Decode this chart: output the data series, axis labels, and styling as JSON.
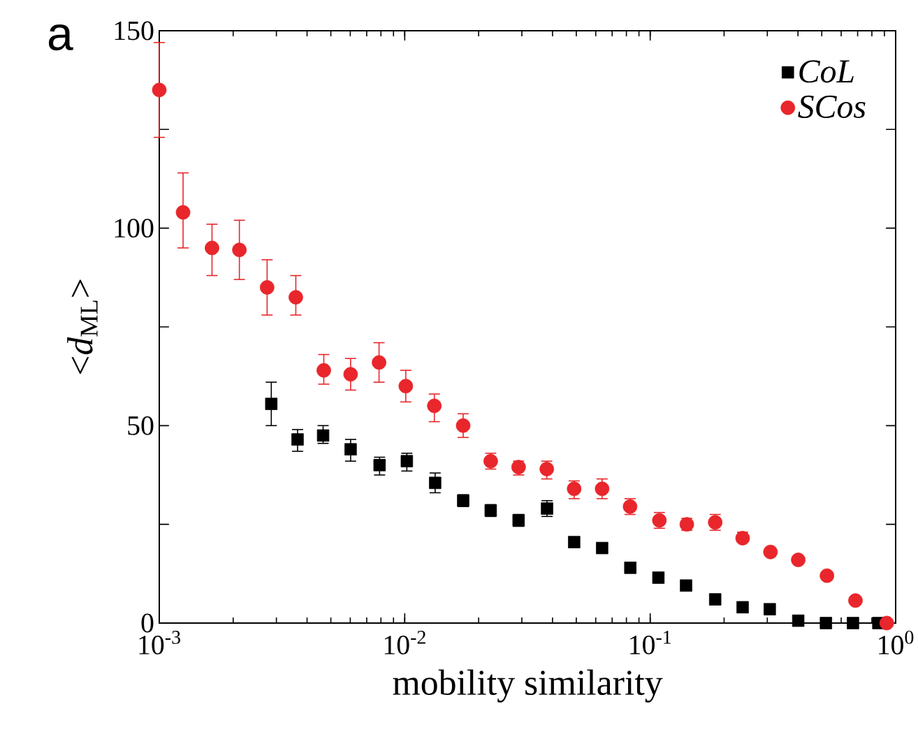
{
  "chart_data": {
    "type": "scatter",
    "xlabel": "mobility similarity",
    "ylabel": "<*d*$_{ML}$>",
    "annotations": [
      "a"
    ],
    "log": "x",
    "xlim": [
      0.001,
      1
    ],
    "ylim": [
      0,
      150
    ],
    "xticks": [
      {
        "value": 0.001,
        "label": "10$^{-3}$"
      },
      {
        "value": 0.01,
        "label": "10$^{-2}$"
      },
      {
        "value": 0.1,
        "label": "10$^{-1}$"
      },
      {
        "value": 1,
        "label": "10$^{0}$"
      }
    ],
    "yticks": [
      0,
      {
        "value": 25,
        "label": null
      },
      50,
      {
        "value": 75,
        "label": null
      },
      100,
      {
        "value": 125,
        "label": null
      },
      150
    ],
    "legend": "top right",
    "series": [
      {
        "name": "CoL",
        "color": "#000000",
        "marker": "square",
        "x": [
          0.00286,
          0.00366,
          0.00465,
          0.00602,
          0.0079,
          0.0102,
          0.0133,
          0.0173,
          0.0224,
          0.0291,
          0.038,
          0.049,
          0.0637,
          0.083,
          0.108,
          0.14,
          0.184,
          0.238,
          0.307,
          0.401,
          0.52,
          0.67,
          0.85
        ],
        "values": [
          55.5,
          46.5,
          47.5,
          44,
          40,
          41,
          35.5,
          31,
          28.5,
          26,
          29,
          20.5,
          19,
          14,
          11.5,
          9.5,
          6,
          4,
          3.5,
          0.6,
          0,
          0,
          0
        ],
        "errors": [
          [
            50,
            61
          ],
          [
            43.5,
            49
          ],
          [
            45.5,
            50
          ],
          [
            41,
            46.5
          ],
          [
            37.5,
            42
          ],
          [
            38.5,
            43
          ],
          [
            33,
            38
          ],
          [
            29.5,
            32.5
          ],
          [
            27,
            30
          ],
          [
            24.5,
            27.5
          ],
          [
            27,
            31
          ],
          null,
          null,
          null,
          null,
          null,
          null,
          null,
          null,
          null,
          null,
          null,
          null
        ]
      },
      {
        "name": "SCos",
        "color": "#e8262b",
        "marker": "circle",
        "x": [
          0.001,
          0.00125,
          0.00164,
          0.00212,
          0.00275,
          0.0036,
          0.00468,
          0.00602,
          0.00786,
          0.0101,
          0.0132,
          0.0173,
          0.0224,
          0.0291,
          0.0379,
          0.049,
          0.0637,
          0.0828,
          0.109,
          0.141,
          0.184,
          0.238,
          0.309,
          0.401,
          0.525,
          0.686,
          0.92
        ],
        "values": [
          135,
          104,
          95,
          94.5,
          85,
          82.5,
          64,
          63,
          66,
          60,
          55,
          50,
          41,
          39.5,
          39,
          34,
          34,
          29.5,
          26,
          25,
          25.5,
          21.5,
          18,
          16,
          12,
          5.7,
          0
        ],
        "errors": [
          [
            123,
            147
          ],
          [
            95,
            114
          ],
          [
            88,
            101
          ],
          [
            87,
            102
          ],
          [
            78,
            92
          ],
          [
            78,
            88
          ],
          [
            60.5,
            68
          ],
          [
            59,
            67
          ],
          [
            61,
            71
          ],
          [
            56,
            64
          ],
          [
            51,
            58
          ],
          [
            47,
            53
          ],
          [
            39,
            43
          ],
          [
            37.5,
            41
          ],
          [
            36.5,
            41
          ],
          [
            31.5,
            36
          ],
          [
            31.5,
            36.5
          ],
          [
            27.5,
            31.5
          ],
          [
            24,
            28
          ],
          [
            23.5,
            26.5
          ],
          [
            23.5,
            27.5
          ],
          [
            20.5,
            23
          ],
          null,
          null,
          null,
          null,
          null
        ]
      }
    ]
  }
}
